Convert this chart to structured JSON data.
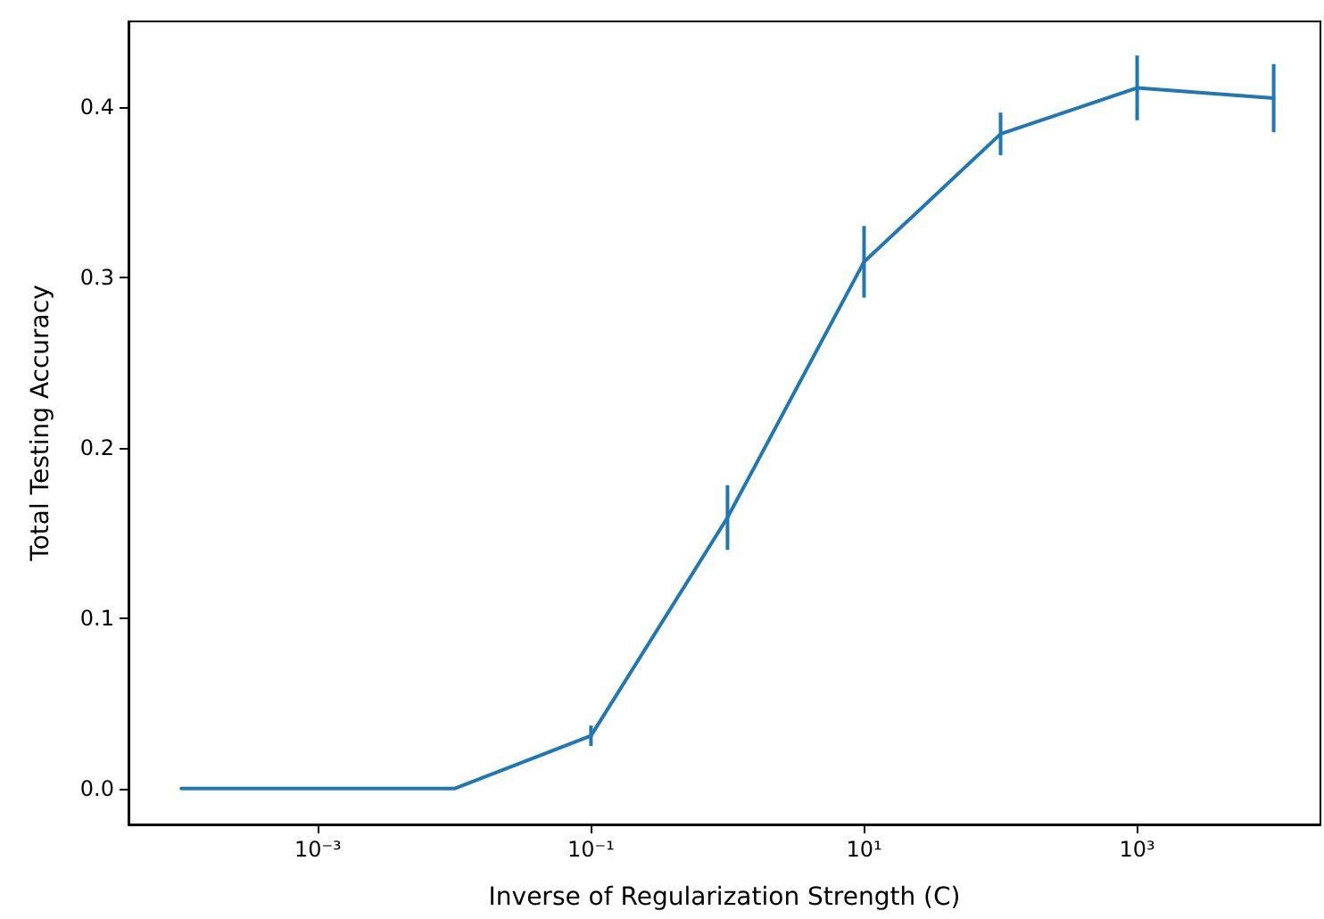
{
  "chart_data": {
    "type": "line",
    "xlabel": "Inverse of Regularization Strength (C)",
    "ylabel": "Total Testing Accuracy",
    "x": [
      0.0001,
      0.001,
      0.01,
      0.1,
      1,
      10,
      100,
      1000,
      10000
    ],
    "series": [
      {
        "color": "#1f77b4",
        "values": [
          0,
          0,
          0,
          0.031,
          0.159,
          0.309,
          0.384,
          0.411,
          0.405
        ],
        "errors": [
          null,
          null,
          null,
          0.006,
          0.019,
          0.021,
          0.0125,
          0.019,
          0.02
        ]
      }
    ],
    "log": "x",
    "xlim": [
      4.1e-05,
      22000
    ],
    "ylim": [
      -0.021,
      0.45
    ],
    "xticks": [
      {
        "value": 0.001,
        "label": "10⁻³"
      },
      {
        "value": 0.1,
        "label": "10⁻¹"
      },
      {
        "value": 10,
        "label": "10¹"
      },
      {
        "value": 1000,
        "label": "10³"
      }
    ],
    "yticks": [
      {
        "value": 0,
        "label": "0.0"
      },
      0.1,
      0.2,
      0.3,
      0.4
    ],
    "grid": false,
    "marker": "none",
    "line_style": "solid"
  }
}
